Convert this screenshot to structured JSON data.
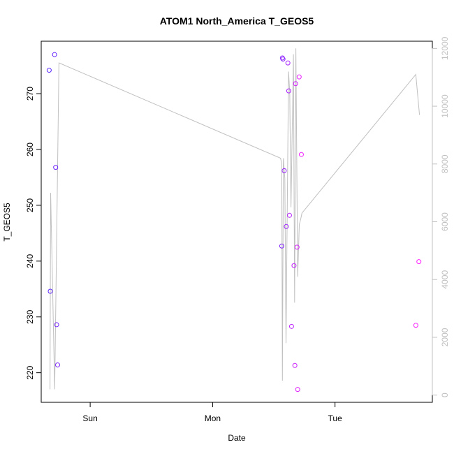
{
  "chart_data": {
    "type": "scatter",
    "title": "ATOM1 North_America T_GEOS5",
    "xlabel": "Date",
    "ylabel": "T_GEOS5",
    "x_ticks": [
      {
        "label": "Sun",
        "value": 1.0
      },
      {
        "label": "Mon",
        "value": 2.0
      },
      {
        "label": "Tue",
        "value": 3.0
      }
    ],
    "xlim": [
      0.6,
      3.795
    ],
    "ylim": [
      214.7,
      279.4
    ],
    "y_ticks": [
      220,
      230,
      240,
      250,
      260,
      270
    ],
    "y2lim": [
      -250,
      12250
    ],
    "y2_ticks": [
      0,
      2000,
      4000,
      6000,
      8000,
      10000,
      12000
    ],
    "grid": false,
    "legend": "none",
    "series": [
      {
        "kind": "points",
        "axis": "left",
        "color_start": "#5522ff",
        "color_end": "#ff22ff",
        "x": [
          0.665,
          0.674,
          0.709,
          0.718,
          0.726,
          0.734,
          2.565,
          2.57,
          2.575,
          2.585,
          2.602,
          2.615,
          2.622,
          2.628,
          2.645,
          2.665,
          2.672,
          2.678,
          2.69,
          2.695,
          2.707,
          2.725,
          3.66,
          3.685
        ],
        "y": [
          274.2,
          234.6,
          277.0,
          256.8,
          228.6,
          221.4,
          242.7,
          276.4,
          276.2,
          256.2,
          246.2,
          275.5,
          270.5,
          248.2,
          228.3,
          239.2,
          221.3,
          271.8,
          242.5,
          217.0,
          273.0,
          259.1,
          228.5,
          239.9
        ]
      },
      {
        "kind": "line",
        "axis": "right",
        "color": "#c0c0c0",
        "x": [
          0.672,
          0.677,
          0.71,
          0.745,
          2.555,
          2.565,
          2.57,
          2.578,
          2.59,
          2.6,
          2.62,
          2.63,
          2.64,
          2.66,
          2.67,
          2.68,
          2.695,
          2.708,
          2.72,
          2.73,
          3.66,
          3.69
        ],
        "y": [
          200,
          7000,
          200,
          11500,
          8200,
          8000,
          500,
          8200,
          7500,
          1800,
          11200,
          10500,
          6500,
          11800,
          3200,
          12000,
          4100,
          5900,
          6100,
          6300,
          11100,
          9700
        ]
      }
    ]
  }
}
